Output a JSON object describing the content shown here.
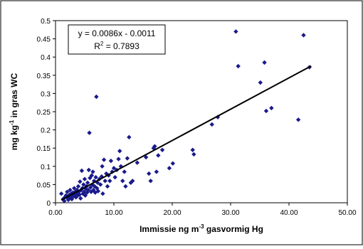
{
  "chart_data": {
    "type": "scatter",
    "title": "",
    "xlabel": {
      "pre": "Immissie ng m",
      "sup": "-3",
      "post": " gasvormig Hg"
    },
    "ylabel": {
      "pre": "mg kg",
      "sup": "-1",
      "post": " in gras WC"
    },
    "xlim": [
      0,
      50
    ],
    "ylim": [
      0,
      0.5
    ],
    "xticks": [
      "0.00",
      "10.00",
      "20.00",
      "30.00",
      "40.00",
      "50.00"
    ],
    "yticks": [
      "0",
      "0.05",
      "0.1",
      "0.15",
      "0.2",
      "0.25",
      "0.3",
      "0.35",
      "0.4",
      "0.45",
      "0.5"
    ],
    "grid": false,
    "marker_color": "#1a1a8c",
    "trendline": {
      "slope": 0.0086,
      "intercept": -0.0011,
      "x_range": [
        1.0,
        43.8
      ],
      "color": "#000000"
    },
    "annotation": {
      "equation": "y = 0.0086x - 0.0011",
      "r2_pre": "R",
      "r2_sup": "2",
      "r2_post": " = 0.7893"
    },
    "points": [
      [
        1.0,
        0.025
      ],
      [
        1.3,
        0.01
      ],
      [
        1.5,
        0.005
      ],
      [
        1.6,
        0.015
      ],
      [
        1.8,
        0.02
      ],
      [
        2.0,
        0.03
      ],
      [
        2.1,
        0.012
      ],
      [
        2.2,
        0.008
      ],
      [
        2.3,
        0.018
      ],
      [
        2.4,
        0.022
      ],
      [
        2.5,
        0.035
      ],
      [
        2.6,
        0.015
      ],
      [
        2.7,
        0.025
      ],
      [
        2.8,
        0.01
      ],
      [
        2.9,
        0.02
      ],
      [
        3.0,
        0.028
      ],
      [
        3.1,
        0.018
      ],
      [
        3.2,
        0.04
      ],
      [
        3.3,
        0.022
      ],
      [
        3.4,
        0.03
      ],
      [
        3.5,
        0.015
      ],
      [
        3.6,
        0.025
      ],
      [
        3.7,
        0.035
      ],
      [
        3.8,
        0.02
      ],
      [
        3.9,
        0.045
      ],
      [
        4.0,
        0.03
      ],
      [
        4.1,
        0.022
      ],
      [
        4.2,
        0.058
      ],
      [
        4.3,
        0.012
      ],
      [
        4.4,
        0.035
      ],
      [
        4.5,
        0.088
      ],
      [
        4.6,
        0.04
      ],
      [
        4.7,
        0.025
      ],
      [
        4.8,
        0.05
      ],
      [
        4.9,
        0.03
      ],
      [
        5.0,
        0.065
      ],
      [
        5.1,
        0.02
      ],
      [
        5.2,
        0.038
      ],
      [
        5.3,
        0.045
      ],
      [
        5.4,
        0.028
      ],
      [
        5.5,
        0.055
      ],
      [
        5.6,
        0.035
      ],
      [
        5.7,
        0.09
      ],
      [
        5.8,
        0.192
      ],
      [
        5.9,
        0.068
      ],
      [
        6.0,
        0.042
      ],
      [
        6.1,
        0.03
      ],
      [
        6.2,
        0.075
      ],
      [
        6.3,
        0.05
      ],
      [
        6.4,
        0.085
      ],
      [
        6.5,
        0.035
      ],
      [
        6.6,
        0.06
      ],
      [
        6.7,
        0.045
      ],
      [
        6.8,
        0.028
      ],
      [
        6.9,
        0.07
      ],
      [
        7.0,
        0.291
      ],
      [
        7.1,
        0.04
      ],
      [
        7.2,
        0.055
      ],
      [
        7.3,
        0.032
      ],
      [
        7.5,
        0.065
      ],
      [
        7.7,
        0.05
      ],
      [
        7.9,
        0.072
      ],
      [
        8.0,
        0.1
      ],
      [
        8.1,
        0.025
      ],
      [
        8.3,
        0.118
      ],
      [
        8.5,
        0.06
      ],
      [
        8.7,
        0.08
      ],
      [
        8.9,
        0.045
      ],
      [
        9.1,
        0.075
      ],
      [
        9.3,
        0.06
      ],
      [
        9.5,
        0.115
      ],
      [
        9.7,
        0.085
      ],
      [
        10.0,
        0.095
      ],
      [
        10.2,
        0.07
      ],
      [
        10.5,
        0.09
      ],
      [
        10.8,
        0.12
      ],
      [
        11.0,
        0.142
      ],
      [
        11.2,
        0.1
      ],
      [
        11.5,
        0.06
      ],
      [
        11.8,
        0.085
      ],
      [
        12.0,
        0.045
      ],
      [
        12.3,
        0.122
      ],
      [
        12.6,
        0.18
      ],
      [
        12.9,
        0.055
      ],
      [
        13.2,
        0.06
      ],
      [
        14.0,
        0.11
      ],
      [
        15.5,
        0.125
      ],
      [
        16.0,
        0.08
      ],
      [
        16.3,
        0.06
      ],
      [
        16.8,
        0.15
      ],
      [
        17.0,
        0.155
      ],
      [
        17.3,
        0.085
      ],
      [
        17.6,
        0.13
      ],
      [
        18.3,
        0.145
      ],
      [
        19.5,
        0.095
      ],
      [
        20.1,
        0.108
      ],
      [
        23.5,
        0.145
      ],
      [
        23.7,
        0.133
      ],
      [
        26.8,
        0.215
      ],
      [
        27.8,
        0.235
      ],
      [
        30.9,
        0.47
      ],
      [
        31.3,
        0.375
      ],
      [
        35.1,
        0.33
      ],
      [
        35.8,
        0.385
      ],
      [
        36.1,
        0.252
      ],
      [
        37.0,
        0.26
      ],
      [
        41.6,
        0.228
      ],
      [
        42.5,
        0.46
      ],
      [
        43.5,
        0.372
      ]
    ]
  }
}
